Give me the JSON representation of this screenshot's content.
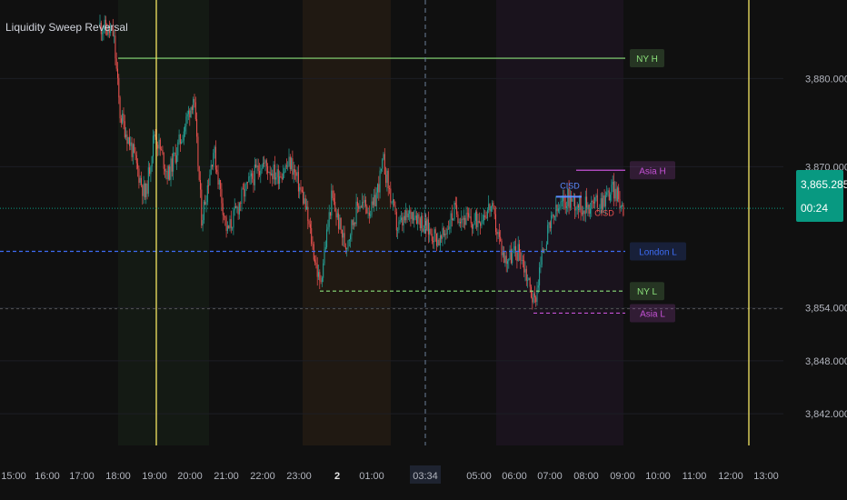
{
  "indicator_name": "Liquidity Sweep Reversal",
  "current_price": "3,865.285",
  "countdown": "00:24",
  "colors": {
    "background": "#101010",
    "axis_text": "#b2b5be",
    "up": "#26a69a",
    "down": "#ef5350",
    "vline": "#f5e663",
    "ny": "#8be07a",
    "asia": "#c552d6",
    "london": "#3d6cf5",
    "last_price": "#089981"
  },
  "chart_data": {
    "type": "candlestick",
    "title": "Liquidity Sweep Reversal",
    "ylim": [
      3838.4,
      3888.9
    ],
    "y_ticks": [
      {
        "value": 3880,
        "label": "3,880.000"
      },
      {
        "value": 3870,
        "label": "3,870.000"
      },
      {
        "value": 3854,
        "label": "3,854.000"
      },
      {
        "value": 3848,
        "label": "3,848.000"
      },
      {
        "value": 3842,
        "label": "3,842.000"
      }
    ],
    "x_ticks": [
      "15:00",
      "16:00",
      "17:00",
      "18:00",
      "19:00",
      "20:00",
      "21:00",
      "22:00",
      "23:00",
      "2",
      "01:00",
      "03:34",
      "05:00",
      "06:00",
      "07:00",
      "08:00",
      "09:00",
      "10:00",
      "11:00",
      "12:00",
      "13:00"
    ],
    "crosshair_time": "03:34",
    "session_shading": [
      {
        "session": "New York",
        "color": "#6be06a"
      },
      {
        "session": "Asia",
        "color": "#ff9a3c"
      },
      {
        "session": "London",
        "color": "#b04ad6"
      }
    ],
    "levels": [
      {
        "label": "NY H",
        "value": 3882.3,
        "style": "solid",
        "color": "#8be07a"
      },
      {
        "label": "Asia H",
        "value": 3869.6,
        "style": "solid",
        "color": "#c552d6"
      },
      {
        "label": "London L",
        "value": 3860.4,
        "style": "dashed",
        "color": "#3d6cf5"
      },
      {
        "label": "NY L",
        "value": 3855.9,
        "style": "dashed",
        "color": "#8be07a"
      },
      {
        "label": "Asia L",
        "value": 3853.4,
        "style": "dashed",
        "color": "#c552d6"
      }
    ],
    "annotations": [
      "CISD",
      "CISD"
    ],
    "price_path": [
      {
        "x": 110,
        "v": 3886.0
      },
      {
        "x": 125,
        "v": 3885.0
      },
      {
        "x": 132,
        "v": 3876.0
      },
      {
        "x": 145,
        "v": 3872.0
      },
      {
        "x": 160,
        "v": 3866.5
      },
      {
        "x": 170,
        "v": 3874.0
      },
      {
        "x": 185,
        "v": 3869.0
      },
      {
        "x": 200,
        "v": 3873.5
      },
      {
        "x": 213,
        "v": 3878.0
      },
      {
        "x": 222,
        "v": 3864.0
      },
      {
        "x": 235,
        "v": 3872.0
      },
      {
        "x": 250,
        "v": 3862.5
      },
      {
        "x": 268,
        "v": 3867.0
      },
      {
        "x": 288,
        "v": 3870.5
      },
      {
        "x": 305,
        "v": 3869.0
      },
      {
        "x": 320,
        "v": 3870.5
      },
      {
        "x": 335,
        "v": 3866.0
      },
      {
        "x": 352,
        "v": 3856.5
      },
      {
        "x": 365,
        "v": 3866.5
      },
      {
        "x": 380,
        "v": 3861.0
      },
      {
        "x": 395,
        "v": 3866.0
      },
      {
        "x": 410,
        "v": 3865.0
      },
      {
        "x": 422,
        "v": 3870.5
      },
      {
        "x": 437,
        "v": 3863.0
      },
      {
        "x": 455,
        "v": 3865.0
      },
      {
        "x": 470,
        "v": 3863.0
      },
      {
        "x": 485,
        "v": 3861.5
      },
      {
        "x": 500,
        "v": 3865.0
      },
      {
        "x": 520,
        "v": 3863.5
      },
      {
        "x": 540,
        "v": 3865.5
      },
      {
        "x": 555,
        "v": 3859.5
      },
      {
        "x": 572,
        "v": 3860.5
      },
      {
        "x": 588,
        "v": 3854.5
      },
      {
        "x": 598,
        "v": 3861.0
      },
      {
        "x": 610,
        "v": 3864.5
      },
      {
        "x": 625,
        "v": 3866.5
      },
      {
        "x": 640,
        "v": 3865.5
      },
      {
        "x": 660,
        "v": 3866.0
      },
      {
        "x": 675,
        "v": 3867.5
      },
      {
        "x": 686,
        "v": 3865.3
      }
    ]
  }
}
